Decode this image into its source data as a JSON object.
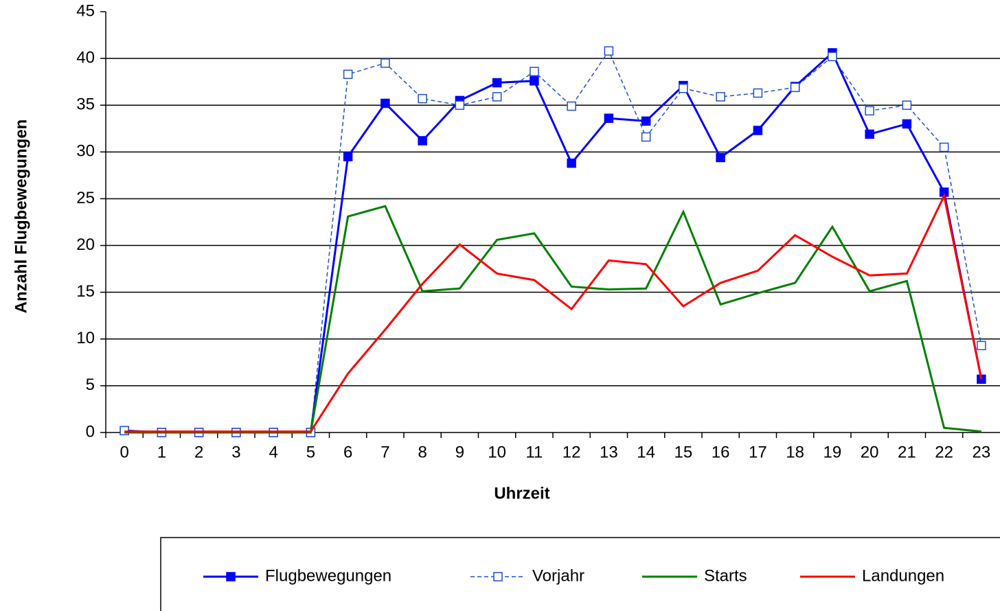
{
  "chart_data": {
    "type": "line",
    "x_label": "Uhrzeit",
    "y_label": "Anzahl Flugbewegungen",
    "categories": [
      "0",
      "1",
      "2",
      "3",
      "4",
      "5",
      "6",
      "7",
      "8",
      "9",
      "10",
      "11",
      "12",
      "13",
      "14",
      "15",
      "16",
      "17",
      "18",
      "19",
      "20",
      "21",
      "22",
      "23"
    ],
    "series": [
      {
        "name": "Flugbewegungen",
        "color": "#0000ff",
        "marker": "square-filled",
        "dash": false,
        "width": 3,
        "values": [
          0.2,
          0,
          0,
          0,
          0,
          0,
          29.5,
          35.2,
          31.2,
          35.5,
          37.4,
          37.6,
          28.8,
          33.6,
          33.3,
          37.1,
          29.4,
          32.3,
          37.0,
          40.6,
          31.9,
          33.0,
          25.7,
          5.7
        ]
      },
      {
        "name": "Vorjahr",
        "color": "#1f4fd0",
        "marker": "square-open",
        "dash": true,
        "width": 1.5,
        "values": [
          0.2,
          0,
          0,
          0,
          0,
          0,
          38.3,
          39.5,
          35.7,
          35.0,
          35.9,
          38.6,
          34.9,
          40.8,
          31.6,
          36.8,
          35.9,
          36.3,
          36.9,
          40.2,
          34.4,
          35.0,
          30.5,
          9.3
        ]
      },
      {
        "name": "Starts",
        "color": "#008000",
        "marker": "none",
        "dash": false,
        "width": 3,
        "values": [
          0,
          0,
          0,
          0,
          0,
          0,
          23.1,
          24.2,
          15.1,
          15.4,
          20.6,
          21.3,
          15.6,
          15.3,
          15.4,
          23.6,
          13.7,
          14.9,
          16.0,
          22.0,
          15.1,
          16.2,
          0.5,
          0.1
        ]
      },
      {
        "name": "Landungen",
        "color": "#ff0000",
        "marker": "none",
        "dash": false,
        "width": 3,
        "values": [
          0.1,
          0.1,
          0.1,
          0.1,
          0.1,
          0.1,
          6.3,
          11.0,
          15.9,
          20.1,
          17.0,
          16.3,
          13.2,
          18.4,
          18.0,
          13.5,
          16.0,
          17.3,
          21.1,
          18.8,
          16.8,
          17.0,
          25.3,
          5.7
        ]
      }
    ],
    "ylim": [
      0,
      45
    ],
    "yticks": [
      0,
      5,
      10,
      15,
      20,
      25,
      30,
      35,
      40,
      45
    ],
    "grid": true,
    "legend": "bottom"
  }
}
